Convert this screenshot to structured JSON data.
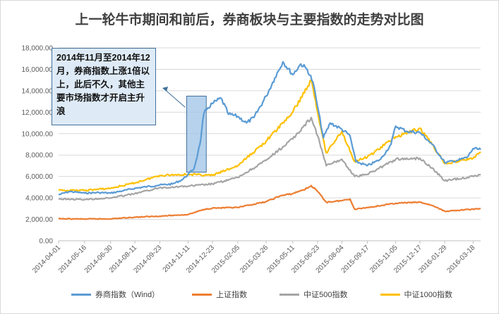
{
  "chart_data": {
    "type": "line",
    "title": "上一轮牛市期间和前后，券商板块与主要指数的走势对比图",
    "ylim": [
      0,
      18000
    ],
    "y_ticks": [
      "0.00",
      "2,000.00",
      "4,000.00",
      "6,000.00",
      "8,000.00",
      "10,000.00",
      "12,000.00",
      "14,000.00",
      "16,000.00",
      "18,000.00"
    ],
    "x_ticks": [
      "2014-04-01",
      "2014-05-16",
      "2014-06-30",
      "2014-08-11",
      "2014-09-23",
      "2014-11-11",
      "2014-12-23",
      "2015-02-05",
      "2015-03-26",
      "2015-05-11",
      "2015-06-23",
      "2015-08-04",
      "2015-09-17",
      "2015-11-05",
      "2015-12-17",
      "2016-01-29",
      "2016-03-18"
    ],
    "grid": true,
    "legend_position": "bottom",
    "annotation": "2014年11月至2014年12月，券商指数上涨1倍以上，此后不久，其他主要市场指数才开启主升浪",
    "highlight_range": [
      "2014-11-11",
      "2014-12-10"
    ],
    "series": [
      {
        "name": "券商指数（Wind）",
        "color": "#5b9bd5",
        "points": [
          [
            "2014-04-01",
            4300
          ],
          [
            "2014-04-20",
            4600
          ],
          [
            "2014-05-16",
            4450
          ],
          [
            "2014-06-10",
            4500
          ],
          [
            "2014-06-30",
            4450
          ],
          [
            "2014-07-20",
            4650
          ],
          [
            "2014-08-11",
            4900
          ],
          [
            "2014-09-01",
            5050
          ],
          [
            "2014-09-23",
            5200
          ],
          [
            "2014-10-15",
            5300
          ],
          [
            "2014-11-01",
            5700
          ],
          [
            "2014-11-11",
            6200
          ],
          [
            "2014-11-21",
            6700
          ],
          [
            "2014-11-28",
            8200
          ],
          [
            "2014-12-03",
            9500
          ],
          [
            "2014-12-08",
            11800
          ],
          [
            "2014-12-15",
            12400
          ],
          [
            "2014-12-23",
            12800
          ],
          [
            "2015-01-07",
            13300
          ],
          [
            "2015-01-20",
            11800
          ],
          [
            "2015-02-05",
            11600
          ],
          [
            "2015-02-20",
            11000
          ],
          [
            "2015-03-05",
            11500
          ],
          [
            "2015-03-26",
            13500
          ],
          [
            "2015-04-10",
            15200
          ],
          [
            "2015-04-24",
            16700
          ],
          [
            "2015-05-11",
            15500
          ],
          [
            "2015-05-25",
            16500
          ],
          [
            "2015-06-05",
            16000
          ],
          [
            "2015-06-15",
            14800
          ],
          [
            "2015-06-23",
            12500
          ],
          [
            "2015-07-03",
            9600
          ],
          [
            "2015-07-15",
            11000
          ],
          [
            "2015-08-04",
            10400
          ],
          [
            "2015-08-18",
            9800
          ],
          [
            "2015-08-28",
            7400
          ],
          [
            "2015-09-17",
            7000
          ],
          [
            "2015-10-10",
            7600
          ],
          [
            "2015-10-28",
            9000
          ],
          [
            "2015-11-05",
            10700
          ],
          [
            "2015-11-25",
            10200
          ],
          [
            "2015-12-17",
            10100
          ],
          [
            "2016-01-07",
            9000
          ],
          [
            "2016-01-29",
            7300
          ],
          [
            "2016-02-20",
            7500
          ],
          [
            "2016-03-08",
            7800
          ],
          [
            "2016-03-18",
            8600
          ],
          [
            "2016-03-31",
            8500
          ]
        ]
      },
      {
        "name": "上证指数",
        "color": "#ed7d31",
        "points": [
          [
            "2014-04-01",
            2050
          ],
          [
            "2014-05-16",
            2030
          ],
          [
            "2014-06-30",
            2050
          ],
          [
            "2014-08-11",
            2200
          ],
          [
            "2014-09-23",
            2300
          ],
          [
            "2014-11-11",
            2450
          ],
          [
            "2014-12-10",
            2950
          ],
          [
            "2014-12-23",
            3050
          ],
          [
            "2015-02-05",
            3100
          ],
          [
            "2015-03-26",
            3650
          ],
          [
            "2015-04-20",
            4200
          ],
          [
            "2015-05-11",
            4400
          ],
          [
            "2015-06-05",
            4900
          ],
          [
            "2015-06-12",
            5150
          ],
          [
            "2015-06-23",
            4600
          ],
          [
            "2015-07-08",
            3600
          ],
          [
            "2015-08-04",
            3750
          ],
          [
            "2015-08-18",
            3900
          ],
          [
            "2015-08-26",
            2950
          ],
          [
            "2015-09-17",
            3100
          ],
          [
            "2015-11-05",
            3500
          ],
          [
            "2015-12-17",
            3600
          ],
          [
            "2016-01-07",
            3300
          ],
          [
            "2016-01-29",
            2750
          ],
          [
            "2016-03-18",
            2950
          ],
          [
            "2016-03-31",
            3000
          ]
        ]
      },
      {
        "name": "中证500指数",
        "color": "#a5a5a5",
        "points": [
          [
            "2014-04-01",
            3900
          ],
          [
            "2014-05-16",
            3850
          ],
          [
            "2014-06-30",
            4000
          ],
          [
            "2014-08-11",
            4400
          ],
          [
            "2014-09-23",
            4950
          ],
          [
            "2014-11-11",
            5100
          ],
          [
            "2014-12-23",
            5300
          ],
          [
            "2015-02-05",
            5900
          ],
          [
            "2015-03-26",
            7500
          ],
          [
            "2015-05-11",
            9500
          ],
          [
            "2015-06-12",
            11500
          ],
          [
            "2015-06-23",
            9800
          ],
          [
            "2015-07-08",
            7000
          ],
          [
            "2015-08-04",
            7600
          ],
          [
            "2015-08-26",
            6000
          ],
          [
            "2015-09-17",
            6200
          ],
          [
            "2015-11-05",
            7600
          ],
          [
            "2015-12-17",
            7700
          ],
          [
            "2016-01-07",
            6800
          ],
          [
            "2016-01-29",
            5600
          ],
          [
            "2016-03-18",
            6000
          ],
          [
            "2016-03-31",
            6200
          ]
        ]
      },
      {
        "name": "中证1000指数",
        "color": "#ffc000",
        "points": [
          [
            "2014-04-01",
            4700
          ],
          [
            "2014-05-16",
            4700
          ],
          [
            "2014-06-30",
            4900
          ],
          [
            "2014-08-11",
            5400
          ],
          [
            "2014-09-23",
            6100
          ],
          [
            "2014-11-11",
            6200
          ],
          [
            "2014-12-23",
            6100
          ],
          [
            "2015-02-05",
            7000
          ],
          [
            "2015-03-26",
            9300
          ],
          [
            "2015-05-11",
            12000
          ],
          [
            "2015-06-12",
            15000
          ],
          [
            "2015-06-23",
            12000
          ],
          [
            "2015-07-08",
            8200
          ],
          [
            "2015-08-04",
            10200
          ],
          [
            "2015-08-26",
            7400
          ],
          [
            "2015-09-17",
            7800
          ],
          [
            "2015-11-05",
            9700
          ],
          [
            "2015-12-17",
            10500
          ],
          [
            "2016-01-07",
            9000
          ],
          [
            "2016-01-29",
            7200
          ],
          [
            "2016-03-18",
            7700
          ],
          [
            "2016-03-31",
            8300
          ]
        ]
      }
    ]
  }
}
